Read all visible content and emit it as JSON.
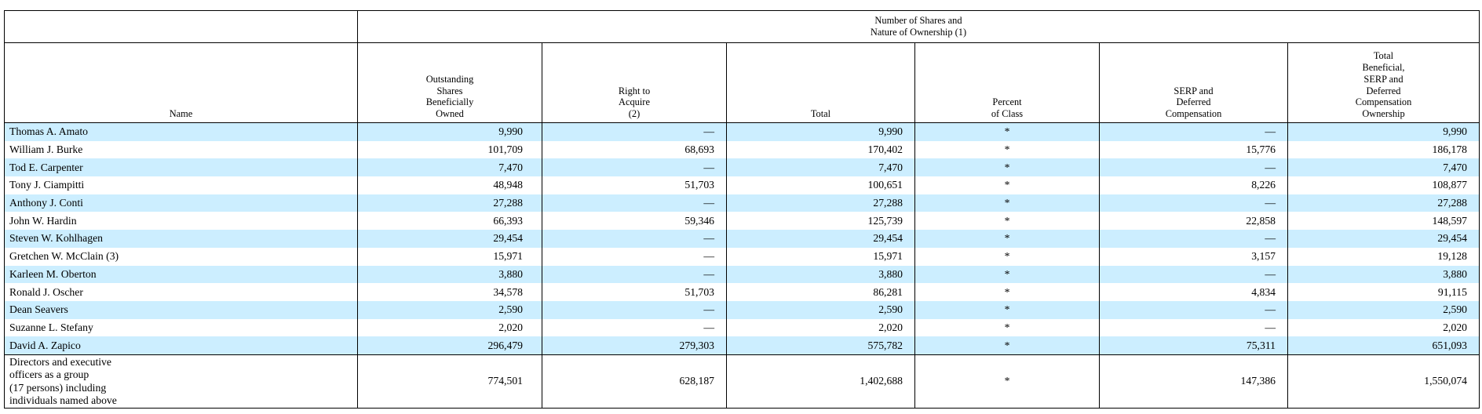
{
  "colors": {
    "row_alt": "#cceeff",
    "border": "#000000",
    "text": "#000000"
  },
  "table": {
    "top_header": "Number of Shares and\nNature of Ownership (1)",
    "columns": {
      "name": "Name",
      "outstanding": "Outstanding\nShares\nBeneficially\nOwned",
      "right_to_acquire": "Right to\nAcquire\n(2)",
      "total": "Total",
      "percent": "Percent\nof Class",
      "serp": "SERP and\nDeferred\nCompensation",
      "total_beneficial": "Total\nBeneficial,\nSERP and\nDeferred\nCompensation\nOwnership"
    },
    "rows": [
      {
        "name": "Thomas A. Amato",
        "cells": [
          "9,990",
          "—",
          "9,990",
          "*",
          "—",
          "9,990"
        ]
      },
      {
        "name": "William J. Burke",
        "cells": [
          "101,709",
          "68,693",
          "170,402",
          "*",
          "15,776",
          "186,178"
        ]
      },
      {
        "name": "Tod E. Carpenter",
        "cells": [
          "7,470",
          "—",
          "7,470",
          "*",
          "—",
          "7,470"
        ]
      },
      {
        "name": "Tony J. Ciampitti",
        "cells": [
          "48,948",
          "51,703",
          "100,651",
          "*",
          "8,226",
          "108,877"
        ]
      },
      {
        "name": "Anthony J. Conti",
        "cells": [
          "27,288",
          "—",
          "27,288",
          "*",
          "—",
          "27,288"
        ]
      },
      {
        "name": "John W. Hardin",
        "cells": [
          "66,393",
          "59,346",
          "125,739",
          "*",
          "22,858",
          "148,597"
        ]
      },
      {
        "name": "Steven W. Kohlhagen",
        "cells": [
          "29,454",
          "—",
          "29,454",
          "*",
          "—",
          "29,454"
        ]
      },
      {
        "name": "Gretchen W. McClain (3)",
        "cells": [
          "15,971",
          "—",
          "15,971",
          "*",
          "3,157",
          "19,128"
        ]
      },
      {
        "name": "Karleen M. Oberton",
        "cells": [
          "3,880",
          "—",
          "3,880",
          "*",
          "—",
          "3,880"
        ]
      },
      {
        "name": "Ronald J. Oscher",
        "cells": [
          "34,578",
          "51,703",
          "86,281",
          "*",
          "4,834",
          "91,115"
        ]
      },
      {
        "name": "Dean Seavers",
        "cells": [
          "2,590",
          "—",
          "2,590",
          "*",
          "—",
          "2,590"
        ]
      },
      {
        "name": "Suzanne L. Stefany",
        "cells": [
          "2,020",
          "—",
          "2,020",
          "*",
          "—",
          "2,020"
        ]
      },
      {
        "name": "David A. Zapico",
        "cells": [
          "296,479",
          "279,303",
          "575,782",
          "*",
          "75,311",
          "651,093"
        ]
      }
    ],
    "group_row": {
      "name": "Directors and executive\nofficers as a group\n(17 persons) including\nindividuals named above",
      "cells": [
        "774,501",
        "628,187",
        "1,402,688",
        "*",
        "147,386",
        "1,550,074"
      ]
    }
  }
}
